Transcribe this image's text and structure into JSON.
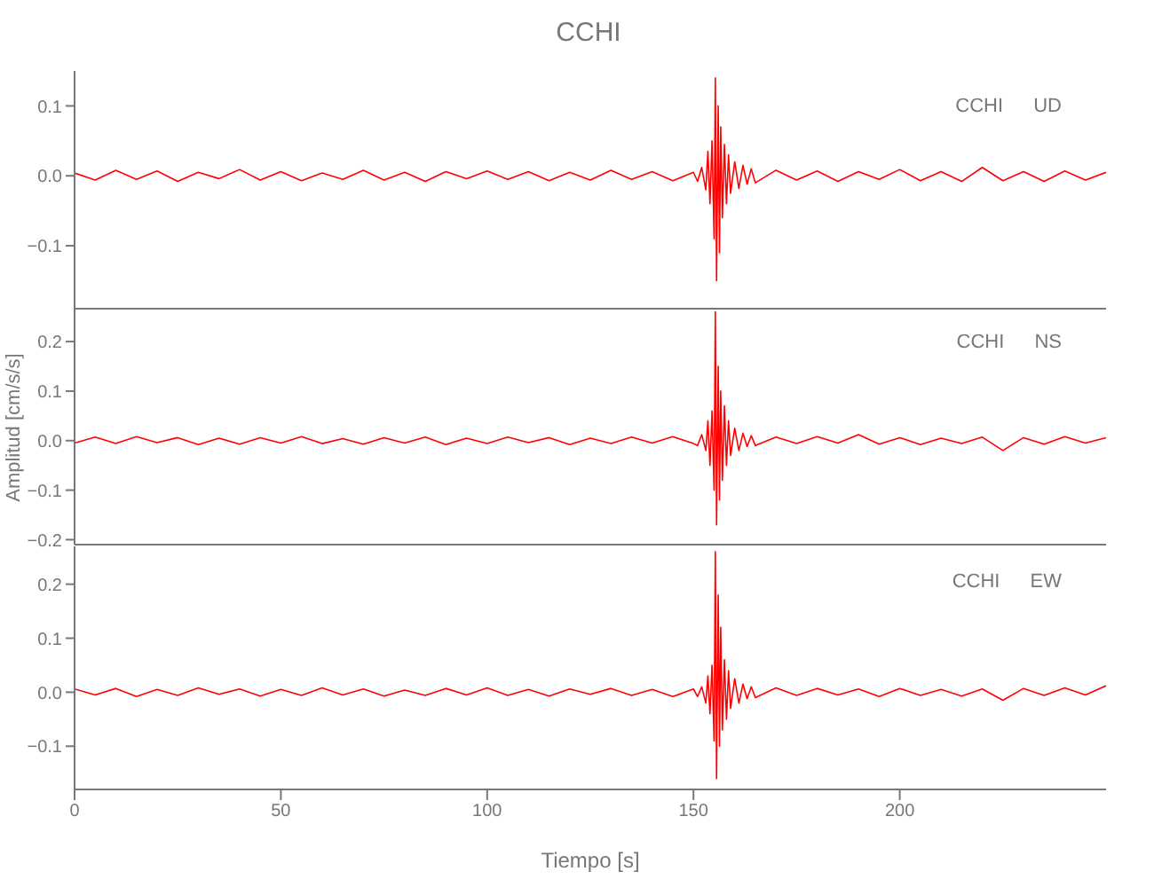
{
  "chart_data": [
    {
      "type": "line",
      "title": "CCHI",
      "annotations": [
        "CCHI UD"
      ],
      "x": [
        0,
        5,
        10,
        15,
        20,
        25,
        30,
        35,
        40,
        45,
        50,
        55,
        60,
        65,
        70,
        75,
        80,
        85,
        90,
        95,
        100,
        105,
        110,
        115,
        120,
        125,
        130,
        135,
        140,
        145,
        150,
        151,
        152,
        153,
        153.5,
        154,
        154.5,
        155,
        155.3,
        155.6,
        156,
        156.3,
        156.6,
        157,
        157.5,
        158,
        158.5,
        159,
        160,
        161,
        162,
        163,
        164,
        165,
        170,
        175,
        180,
        185,
        190,
        195,
        200,
        205,
        210,
        215,
        220,
        225,
        230,
        235,
        240,
        245,
        250
      ],
      "series": [
        {
          "color": "#ff0000",
          "values": [
            0.004,
            -0.006,
            0.008,
            -0.005,
            0.007,
            -0.008,
            0.005,
            -0.004,
            0.009,
            -0.006,
            0.006,
            -0.007,
            0.004,
            -0.005,
            0.008,
            -0.006,
            0.005,
            -0.008,
            0.006,
            -0.004,
            0.007,
            -0.005,
            0.006,
            -0.007,
            0.005,
            -0.006,
            0.008,
            -0.005,
            0.006,
            -0.007,
            0.005,
            -0.008,
            0.012,
            -0.02,
            0.035,
            -0.04,
            0.05,
            -0.09,
            0.14,
            -0.15,
            0.1,
            -0.11,
            0.07,
            -0.06,
            0.045,
            -0.04,
            0.03,
            -0.025,
            0.02,
            -0.018,
            0.015,
            -0.012,
            0.01,
            -0.01,
            0.008,
            -0.006,
            0.007,
            -0.008,
            0.006,
            -0.005,
            0.009,
            -0.007,
            0.006,
            -0.008,
            0.012,
            -0.007,
            0.006,
            -0.008,
            0.007,
            -0.006,
            0.005
          ]
        }
      ],
      "xlim": [
        0,
        250
      ],
      "xticks": [
        0,
        50,
        100,
        150,
        200
      ],
      "ylim": [
        -0.19,
        0.15
      ],
      "yticks": [
        {
          "value": 0.1,
          "label": "0.1"
        },
        {
          "value": 0,
          "label": "0.0"
        },
        {
          "value": -0.1,
          "label": "−0.1"
        }
      ],
      "tick_labels": "y",
      "marker": "none"
    },
    {
      "type": "line",
      "ylabel": "Amplitud [cm/s/s]",
      "annotations": [
        "CCHI NS"
      ],
      "x": [
        0,
        5,
        10,
        15,
        20,
        25,
        30,
        35,
        40,
        45,
        50,
        55,
        60,
        65,
        70,
        75,
        80,
        85,
        90,
        95,
        100,
        105,
        110,
        115,
        120,
        125,
        130,
        135,
        140,
        145,
        150,
        151,
        152,
        153,
        153.5,
        154,
        154.5,
        155,
        155.3,
        155.6,
        156,
        156.3,
        156.6,
        157,
        157.5,
        158,
        158.5,
        159,
        160,
        161,
        162,
        163,
        164,
        165,
        170,
        175,
        180,
        185,
        190,
        195,
        200,
        205,
        210,
        215,
        220,
        225,
        230,
        235,
        240,
        245,
        250
      ],
      "series": [
        {
          "color": "#ff0000",
          "values": [
            -0.005,
            0.007,
            -0.006,
            0.008,
            -0.004,
            0.006,
            -0.008,
            0.005,
            -0.007,
            0.006,
            -0.005,
            0.008,
            -0.006,
            0.004,
            -0.007,
            0.006,
            -0.005,
            0.007,
            -0.008,
            0.005,
            -0.006,
            0.007,
            -0.004,
            0.006,
            -0.008,
            0.005,
            -0.006,
            0.007,
            -0.005,
            0.008,
            -0.006,
            -0.01,
            0.012,
            -0.02,
            0.04,
            -0.05,
            0.06,
            -0.1,
            0.26,
            -0.17,
            0.15,
            -0.12,
            0.1,
            -0.08,
            0.07,
            -0.05,
            0.04,
            -0.03,
            0.025,
            -0.02,
            0.015,
            -0.012,
            0.01,
            -0.01,
            0.007,
            -0.006,
            0.008,
            -0.005,
            0.012,
            -0.007,
            0.006,
            -0.008,
            0.005,
            -0.006,
            0.007,
            -0.02,
            0.006,
            -0.007,
            0.008,
            -0.005,
            0.006
          ]
        }
      ],
      "xlim": [
        0,
        250
      ],
      "xticks": [
        0,
        50,
        100,
        150,
        200
      ],
      "ylim": [
        -0.21,
        0.27
      ],
      "yticks": [
        {
          "value": 0.2,
          "label": "0.2"
        },
        {
          "value": 0.1,
          "label": "0.1"
        },
        {
          "value": 0,
          "label": "0.0"
        },
        {
          "value": -0.1,
          "label": "−0.1"
        },
        {
          "value": -0.2,
          "label": "−0.2"
        }
      ],
      "tick_labels": "y",
      "marker": "none"
    },
    {
      "type": "line",
      "xlabel": "Tiempo [s]",
      "annotations": [
        "CCHI EW"
      ],
      "x": [
        0,
        5,
        10,
        15,
        20,
        25,
        30,
        35,
        40,
        45,
        50,
        55,
        60,
        65,
        70,
        75,
        80,
        85,
        90,
        95,
        100,
        105,
        110,
        115,
        120,
        125,
        130,
        135,
        140,
        145,
        150,
        151,
        152,
        153,
        153.5,
        154,
        154.5,
        155,
        155.3,
        155.6,
        156,
        156.3,
        156.6,
        157,
        157.5,
        158,
        158.5,
        159,
        160,
        161,
        162,
        163,
        164,
        165,
        170,
        175,
        180,
        185,
        190,
        195,
        200,
        205,
        210,
        215,
        220,
        225,
        230,
        235,
        240,
        245,
        250
      ],
      "series": [
        {
          "color": "#ff0000",
          "values": [
            0.006,
            -0.005,
            0.007,
            -0.008,
            0.005,
            -0.006,
            0.008,
            -0.004,
            0.006,
            -0.007,
            0.005,
            -0.006,
            0.008,
            -0.005,
            0.006,
            -0.007,
            0.004,
            -0.006,
            0.007,
            -0.005,
            0.008,
            -0.006,
            0.005,
            -0.007,
            0.006,
            -0.004,
            0.007,
            -0.006,
            0.005,
            -0.008,
            0.006,
            -0.008,
            0.01,
            -0.02,
            0.03,
            -0.04,
            0.05,
            -0.09,
            0.26,
            -0.16,
            0.18,
            -0.1,
            0.12,
            -0.07,
            0.06,
            -0.05,
            0.04,
            -0.03,
            0.025,
            -0.02,
            0.015,
            -0.012,
            0.01,
            -0.01,
            0.008,
            -0.006,
            0.007,
            -0.005,
            0.006,
            -0.008,
            0.007,
            -0.006,
            0.005,
            -0.007,
            0.006,
            -0.015,
            0.007,
            -0.006,
            0.008,
            -0.005,
            0.012
          ]
        }
      ],
      "xlim": [
        0,
        250
      ],
      "xticks": [
        0,
        50,
        100,
        150,
        200
      ],
      "ylim": [
        -0.18,
        0.27
      ],
      "yticks": [
        {
          "value": 0.2,
          "label": "0.2"
        },
        {
          "value": 0.1,
          "label": "0.1"
        },
        {
          "value": 0,
          "label": "0.0"
        },
        {
          "value": -0.1,
          "label": "−0.1"
        }
      ],
      "marker": "none"
    }
  ]
}
